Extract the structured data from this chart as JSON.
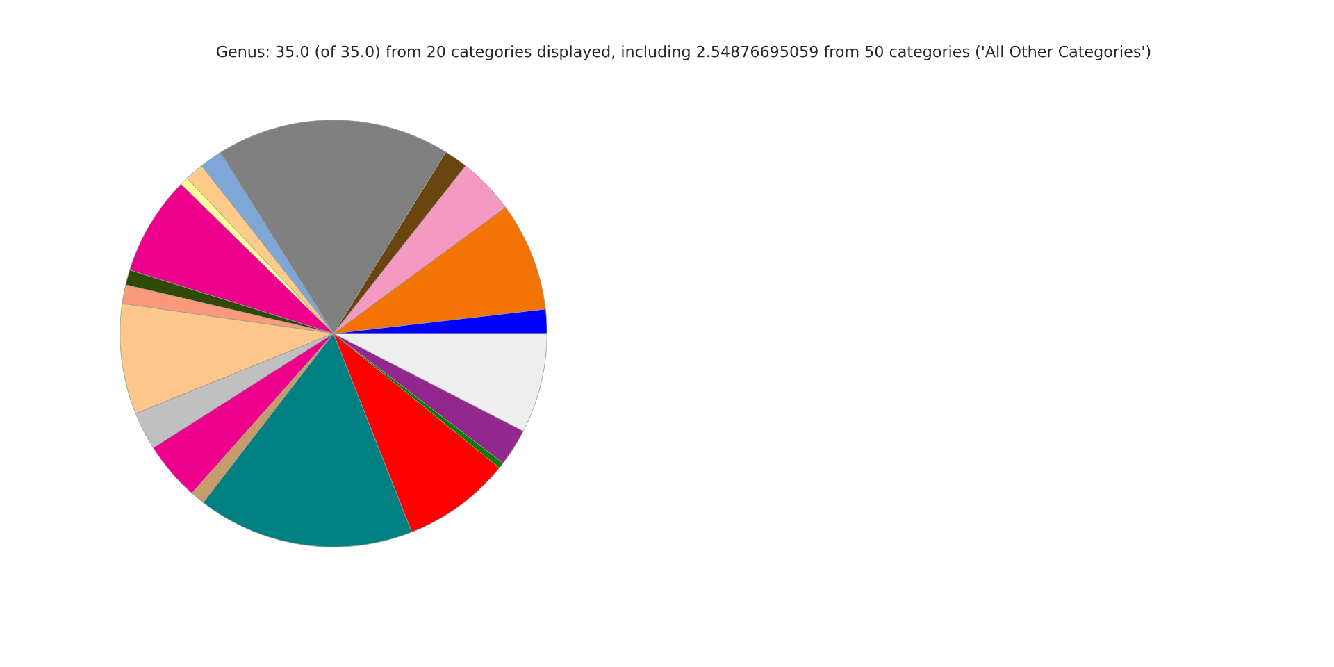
{
  "chart_data": {
    "type": "pie",
    "title": "Genus: 35.0 (of 35.0) from 20 categories displayed, including 2.54876695059 from 50 categories ('All Other Categories')",
    "categories": [
      null,
      null,
      null,
      null,
      null,
      null,
      null,
      null,
      null,
      null,
      null,
      null,
      null,
      null,
      null,
      null,
      null,
      null,
      null,
      null
    ],
    "values": [
      1.83,
      8.25,
      4.31,
      1.78,
      17.72,
      1.72,
      1.42,
      0.64,
      7.53,
      1.14,
      1.42,
      8.36,
      2.89,
      4.44,
      1.11,
      16.42,
      8.19,
      0.44,
      2.83,
      7.56
    ],
    "colors": [
      "#0000ff",
      "#f37304",
      "#f49ac2",
      "#6b4510",
      "#808080",
      "#7ea7d8",
      "#fdcc8a",
      "#ffff99",
      "#ec008c",
      "#2f4a07",
      "#fb9a7a",
      "#fdc68a",
      "#c0c0c0",
      "#ec008c",
      "#c69c6d",
      "#008080",
      "#ff0000",
      "#007f00",
      "#92278f",
      "#eeeeee"
    ]
  }
}
